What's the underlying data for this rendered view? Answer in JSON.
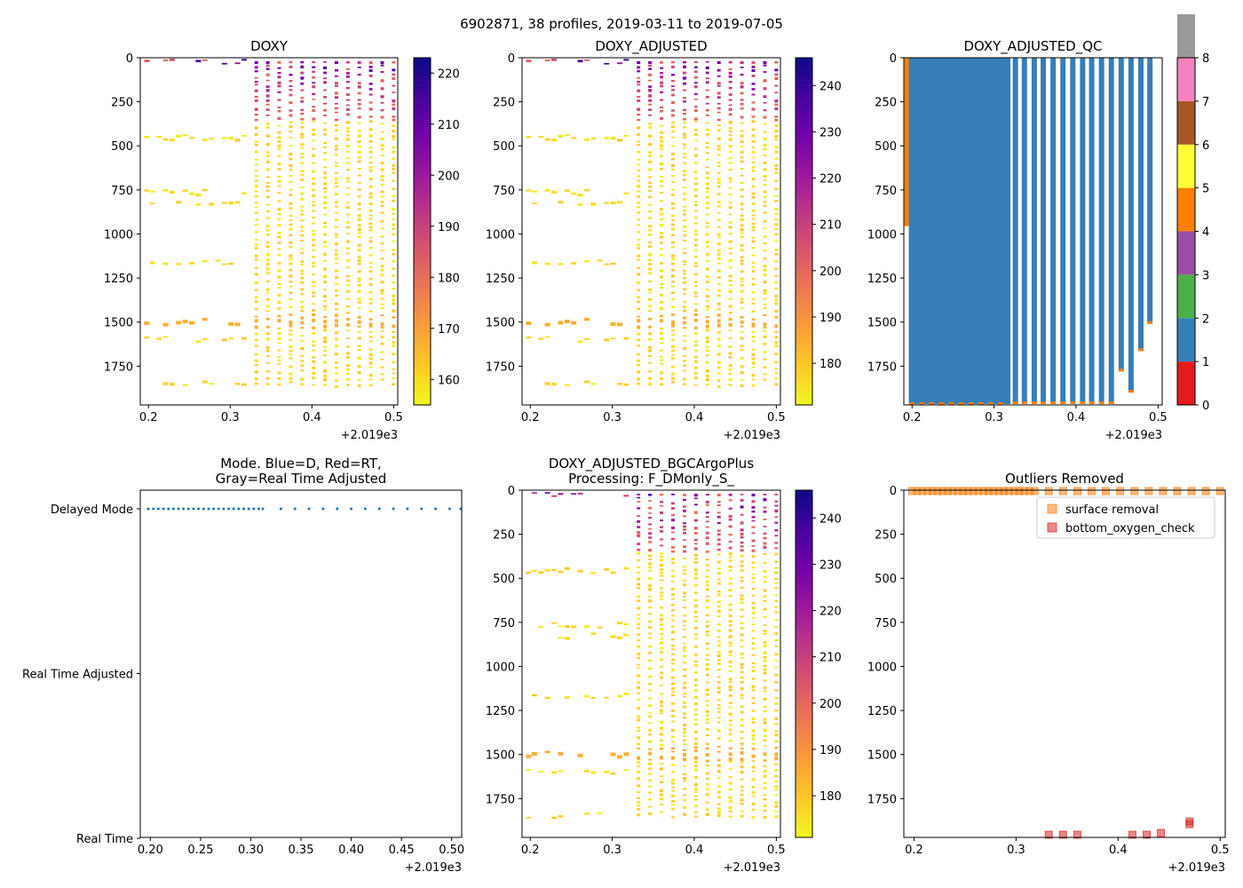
{
  "figure": {
    "suptitle": "6902871, 38 profiles, 2019-03-11 to 2019-07-05"
  },
  "chart_data": [
    {
      "id": "doxy",
      "type": "heatmap",
      "title": "DOXY",
      "xlim": [
        0.19,
        0.505
      ],
      "ylim": [
        1970,
        0
      ],
      "xticks": [
        0.2,
        0.3,
        0.4,
        0.5
      ],
      "xtick_labels": [
        "0.2",
        "0.3",
        "0.4",
        "0.5"
      ],
      "x_offset_label": "+2.019e3",
      "yticks": [
        0,
        250,
        500,
        750,
        1000,
        1250,
        1500,
        1750
      ],
      "ytick_labels": [
        "0",
        "250",
        "500",
        "750",
        "1000",
        "1250",
        "1500",
        "1750"
      ],
      "colorbar": {
        "cmap": "plasma_r",
        "range": [
          155,
          223
        ],
        "ticks": [
          160,
          170,
          180,
          190,
          200,
          210,
          220
        ],
        "tick_labels": [
          "160",
          "170",
          "180",
          "190",
          "200",
          "210",
          "220"
        ]
      },
      "x": [
        0.198,
        0.205,
        0.213,
        0.221,
        0.229,
        0.237,
        0.245,
        0.253,
        0.261,
        0.269,
        0.277,
        0.285,
        0.293,
        0.301,
        0.309,
        0.317,
        0.332,
        0.346,
        0.36,
        0.374,
        0.388,
        0.402,
        0.416,
        0.43,
        0.444,
        0.458,
        0.472,
        0.486,
        0.5
      ]
    },
    {
      "id": "doxy_adj",
      "type": "heatmap",
      "title": "DOXY_ADJUSTED",
      "xlim": [
        0.19,
        0.505
      ],
      "ylim": [
        1970,
        0
      ],
      "xticks": [
        0.2,
        0.3,
        0.4,
        0.5
      ],
      "xtick_labels": [
        "0.2",
        "0.3",
        "0.4",
        "0.5"
      ],
      "x_offset_label": "+2.019e3",
      "yticks": [
        0,
        250,
        500,
        750,
        1000,
        1250,
        1500,
        1750
      ],
      "ytick_labels": [
        "0",
        "250",
        "500",
        "750",
        "1000",
        "1250",
        "1500",
        "1750"
      ],
      "colorbar": {
        "cmap": "plasma_r",
        "range": [
          171,
          246
        ],
        "ticks": [
          180,
          190,
          200,
          210,
          220,
          230,
          240
        ],
        "tick_labels": [
          "180",
          "190",
          "200",
          "210",
          "220",
          "230",
          "240"
        ]
      },
      "x": [
        0.198,
        0.205,
        0.213,
        0.221,
        0.229,
        0.237,
        0.245,
        0.253,
        0.261,
        0.269,
        0.277,
        0.285,
        0.293,
        0.301,
        0.309,
        0.317,
        0.332,
        0.346,
        0.36,
        0.374,
        0.388,
        0.402,
        0.416,
        0.43,
        0.444,
        0.458,
        0.472,
        0.486,
        0.5
      ]
    },
    {
      "id": "qc",
      "type": "heatmap",
      "title": "DOXY_ADJUSTED_QC",
      "xlim": [
        0.19,
        0.505
      ],
      "ylim": [
        1970,
        0
      ],
      "xticks": [
        0.2,
        0.3,
        0.4,
        0.5
      ],
      "xtick_labels": [
        "0.2",
        "0.3",
        "0.4",
        "0.5"
      ],
      "x_offset_label": "+2.019e3",
      "yticks": [
        0,
        250,
        500,
        750,
        1000,
        1250,
        1500,
        1750
      ],
      "ytick_labels": [
        "0",
        "250",
        "500",
        "750",
        "1000",
        "1250",
        "1500",
        "1750"
      ],
      "colorbar": {
        "type": "categorical",
        "range": [
          0,
          8
        ],
        "colors": [
          "#e41a1c",
          "#377eb8",
          "#4daf4a",
          "#984ea3",
          "#ff7f00",
          "#ffff33",
          "#a65628",
          "#f781bf",
          "#999999"
        ],
        "ticks": [
          0,
          1,
          2,
          3,
          4,
          5,
          6,
          7,
          8
        ],
        "tick_labels": [
          "0",
          "1",
          "2",
          "3",
          "4",
          "5",
          "6",
          "7",
          "8"
        ]
      },
      "dense_block": {
        "x_range": [
          0.196,
          0.32
        ],
        "qc": 1,
        "bottom": 1965
      },
      "columns": [
        {
          "x": 0.326,
          "bottom": 1965
        },
        {
          "x": 0.337,
          "bottom": 1965
        },
        {
          "x": 0.349,
          "bottom": 1965
        },
        {
          "x": 0.36,
          "bottom": 1965
        },
        {
          "x": 0.372,
          "bottom": 1965
        },
        {
          "x": 0.384,
          "bottom": 1965
        },
        {
          "x": 0.396,
          "bottom": 1965
        },
        {
          "x": 0.408,
          "bottom": 1965
        },
        {
          "x": 0.419,
          "bottom": 1965
        },
        {
          "x": 0.431,
          "bottom": 1965
        },
        {
          "x": 0.443,
          "bottom": 1965
        },
        {
          "x": 0.455,
          "bottom": 1780
        },
        {
          "x": 0.467,
          "bottom": 1900
        },
        {
          "x": 0.479,
          "bottom": 1665
        },
        {
          "x": 0.49,
          "bottom": 1510
        }
      ],
      "qc4_column": {
        "x_range": [
          0.19,
          0.196
        ],
        "bottom": 955
      }
    },
    {
      "id": "mode",
      "type": "scatter",
      "title": "Mode. Blue=D, Red=RT,\nGray=Real Time Adjusted",
      "xlim": [
        0.19,
        0.51
      ],
      "xticks": [
        0.2,
        0.25,
        0.3,
        0.35,
        0.4,
        0.45,
        0.5
      ],
      "xtick_labels": [
        "0.20",
        "0.25",
        "0.30",
        "0.35",
        "0.40",
        "0.45",
        "0.50"
      ],
      "x_offset_label": "+2.019e3",
      "categories": [
        "Delayed Mode",
        "Real Time Adjusted",
        "Real Time"
      ],
      "series": [
        {
          "name": "Delayed Mode",
          "color": "#1f77b4",
          "category": "Delayed Mode",
          "x": [
            0.198,
            0.203,
            0.208,
            0.213,
            0.218,
            0.223,
            0.228,
            0.233,
            0.238,
            0.243,
            0.248,
            0.253,
            0.258,
            0.263,
            0.268,
            0.273,
            0.278,
            0.283,
            0.288,
            0.293,
            0.298,
            0.303,
            0.308,
            0.312,
            0.33,
            0.344,
            0.358,
            0.372,
            0.386,
            0.4,
            0.414,
            0.428,
            0.442,
            0.456,
            0.47,
            0.484,
            0.498,
            0.509
          ]
        }
      ]
    },
    {
      "id": "bgc",
      "type": "heatmap",
      "title": "DOXY_ADJUSTED_BGCArgoPlus\nProcessing: F_DMonly_S_",
      "xlim": [
        0.19,
        0.505
      ],
      "ylim": [
        1970,
        0
      ],
      "xticks": [
        0.2,
        0.3,
        0.4,
        0.5
      ],
      "xtick_labels": [
        "0.2",
        "0.3",
        "0.4",
        "0.5"
      ],
      "x_offset_label": "+2.019e3",
      "yticks": [
        0,
        250,
        500,
        750,
        1000,
        1250,
        1500,
        1750
      ],
      "ytick_labels": [
        "0",
        "250",
        "500",
        "750",
        "1000",
        "1250",
        "1500",
        "1750"
      ],
      "colorbar": {
        "cmap": "plasma_r",
        "range": [
          171,
          246
        ],
        "ticks": [
          180,
          190,
          200,
          210,
          220,
          230,
          240
        ],
        "tick_labels": [
          "180",
          "190",
          "200",
          "210",
          "220",
          "230",
          "240"
        ]
      },
      "x": [
        0.198,
        0.205,
        0.213,
        0.221,
        0.229,
        0.237,
        0.245,
        0.253,
        0.261,
        0.269,
        0.277,
        0.285,
        0.293,
        0.301,
        0.309,
        0.317,
        0.332,
        0.346,
        0.36,
        0.374,
        0.388,
        0.402,
        0.416,
        0.43,
        0.444,
        0.458,
        0.472,
        0.486,
        0.5
      ]
    },
    {
      "id": "outliers",
      "type": "scatter",
      "title": "Outliers Removed",
      "xlim": [
        0.19,
        0.505
      ],
      "ylim": [
        1970,
        0
      ],
      "xticks": [
        0.2,
        0.3,
        0.4,
        0.5
      ],
      "xtick_labels": [
        "0.2",
        "0.3",
        "0.4",
        "0.5"
      ],
      "x_offset_label": "+2.019e3",
      "yticks": [
        0,
        250,
        500,
        750,
        1000,
        1250,
        1500,
        1750
      ],
      "ytick_labels": [
        "0",
        "250",
        "500",
        "750",
        "1000",
        "1250",
        "1500",
        "1750"
      ],
      "legend_position": "upper right",
      "series": [
        {
          "name": "surface removal",
          "color": "#ff7f0e",
          "x": [
            0.198,
            0.203,
            0.208,
            0.213,
            0.218,
            0.223,
            0.228,
            0.233,
            0.238,
            0.243,
            0.248,
            0.253,
            0.258,
            0.263,
            0.268,
            0.273,
            0.278,
            0.283,
            0.288,
            0.293,
            0.298,
            0.303,
            0.308,
            0.313,
            0.318,
            0.332,
            0.346,
            0.36,
            0.374,
            0.388,
            0.402,
            0.416,
            0.43,
            0.444,
            0.458,
            0.472,
            0.486,
            0.5
          ],
          "y": [
            5,
            5,
            5,
            5,
            5,
            5,
            5,
            5,
            5,
            5,
            5,
            5,
            5,
            5,
            5,
            5,
            5,
            5,
            5,
            5,
            5,
            5,
            5,
            5,
            5,
            5,
            5,
            5,
            5,
            5,
            5,
            5,
            5,
            5,
            5,
            5,
            5,
            5
          ]
        },
        {
          "name": "bottom_oxygen_check",
          "color": "#d62728",
          "x": [
            0.332,
            0.346,
            0.36,
            0.414,
            0.428,
            0.442,
            0.47,
            0.47
          ],
          "y": [
            1955,
            1955,
            1955,
            1955,
            1955,
            1945,
            1880,
            1895
          ]
        }
      ]
    }
  ]
}
